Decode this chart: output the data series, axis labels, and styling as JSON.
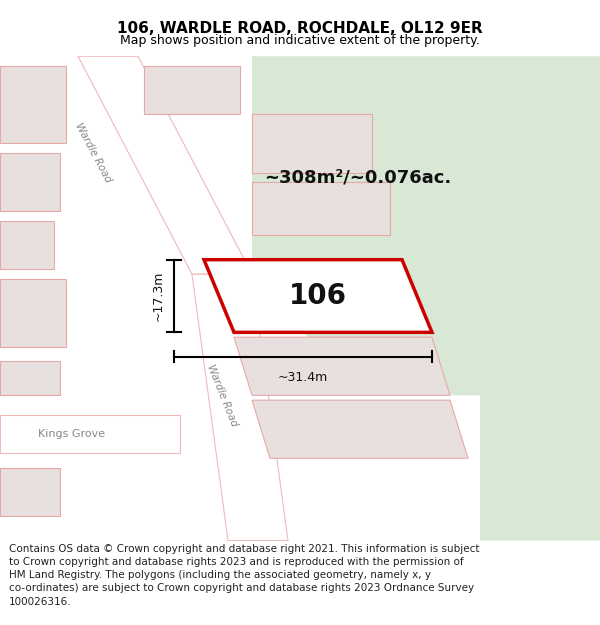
{
  "title": "106, WARDLE ROAD, ROCHDALE, OL12 9ER",
  "subtitle": "Map shows position and indicative extent of the property.",
  "footer": "Contains OS data © Crown copyright and database right 2021. This information is subject to Crown copyright and database rights 2023 and is reproduced with the permission of HM Land Registry. The polygons (including the associated geometry, namely x, y co-ordinates) are subject to Crown copyright and database rights 2023 Ordnance Survey 100026316.",
  "area_label": "~308m²/~0.076ac.",
  "width_label": "~31.4m",
  "height_label": "~17.3m",
  "number_label": "106",
  "map_bg": "#f2eded",
  "green_color": "#d8e8d5",
  "road_fill": "#ffffff",
  "road_edge": "#f0b8b8",
  "bld_fill": "#e8e0df",
  "bld_edge": "#e8a8a8",
  "highlight_fill": "#ffffff",
  "highlight_edge": "#cc0000",
  "wardle_road_label1": "Wardle Road",
  "wardle_road_label2": "Wardle Road",
  "kings_grove_label": "Kings Grove",
  "title_fontsize": 11,
  "subtitle_fontsize": 9,
  "footer_fontsize": 7.5,
  "label_color": "#888888"
}
